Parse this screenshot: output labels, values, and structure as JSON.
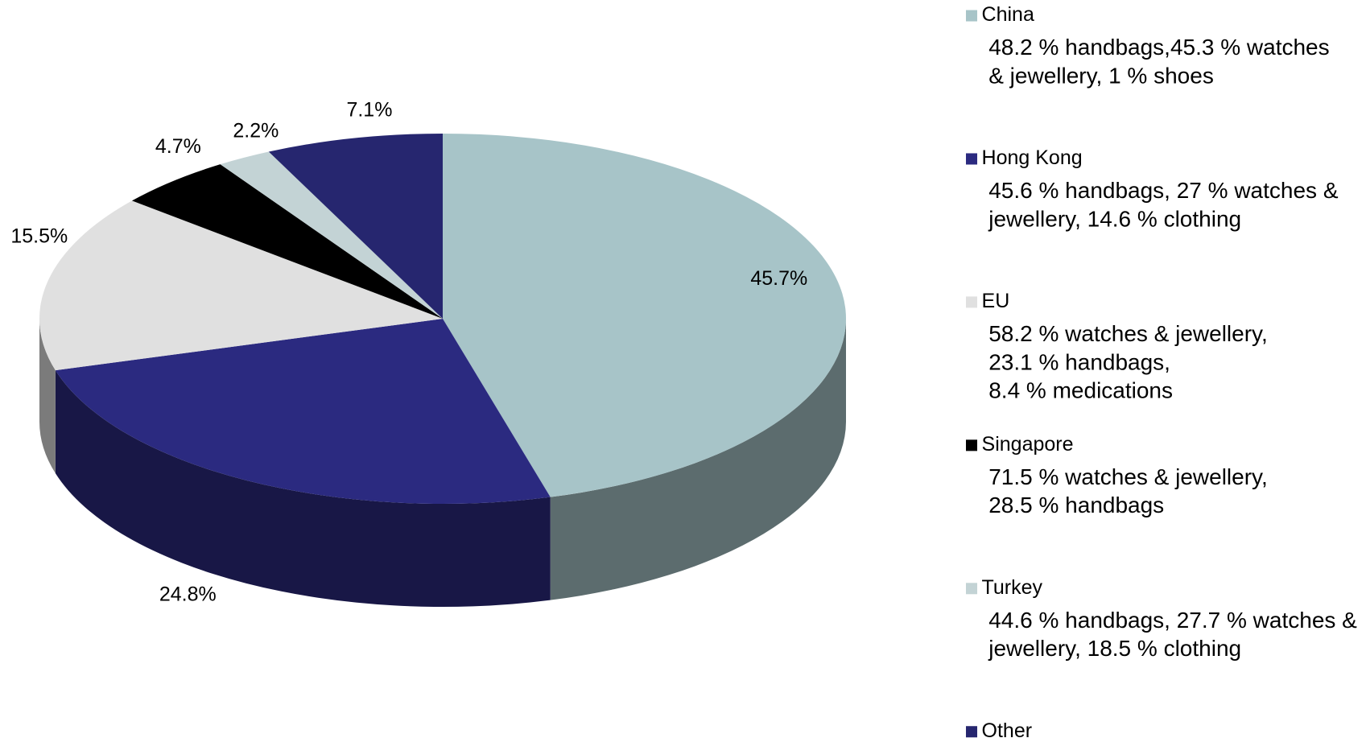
{
  "chart_data": {
    "type": "pie3d",
    "categories": [
      "China",
      "Hong Kong",
      "EU",
      "Singapore",
      "Turkey",
      "Other"
    ],
    "values": [
      45.7,
      24.8,
      15.5,
      4.7,
      2.2,
      7.1
    ],
    "value_labels": [
      "45.7%",
      "24.8%",
      "15.5%",
      "4.7%",
      "2.2%",
      "7.1%"
    ],
    "colors": [
      "#a7c4c8",
      "#2b2a80",
      "#e0e0e0",
      "#000000",
      "#c3d3d5",
      "#26266f"
    ],
    "descriptions": [
      [
        "48.2 % handbags,45.3 % watches",
        "& jewellery, 1 % shoes"
      ],
      [
        "45.6 % handbags, 27 % watches &",
        "jewellery, 14.6 % clothing"
      ],
      [
        "58.2 % watches & jewellery,",
        "23.1 % handbags,",
        "8.4 % medications"
      ],
      [
        "71.5 % watches & jewellery,",
        "28.5 % handbags"
      ],
      [
        "44.6 % handbags, 27.7 % watches &",
        "jewellery, 18.5 % clothing"
      ],
      []
    ]
  }
}
